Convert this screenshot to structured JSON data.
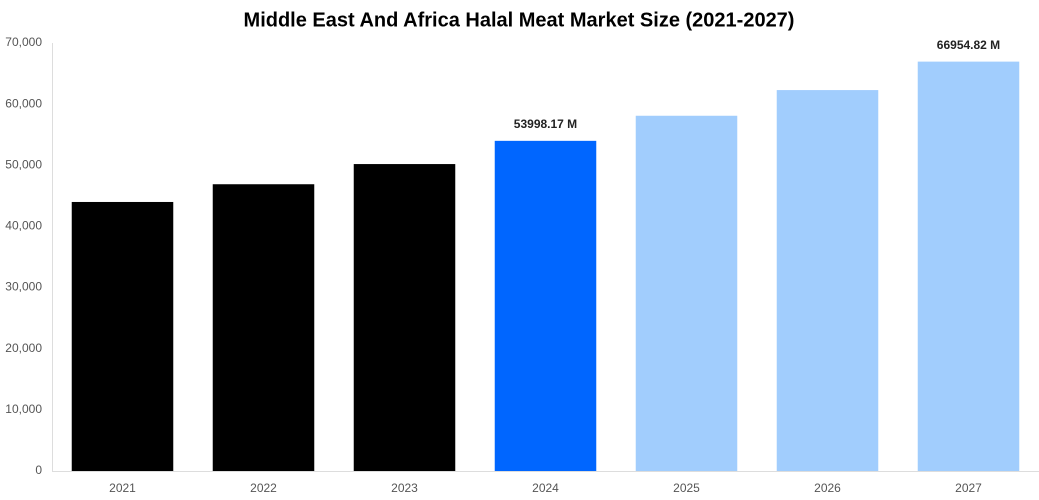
{
  "chart_data": {
    "type": "bar",
    "title": "Middle East And Africa Halal Meat Market Size (2021-2027)",
    "categories": [
      "2021",
      "2022",
      "2023",
      "2024",
      "2025",
      "2026",
      "2027"
    ],
    "values": [
      44000,
      46900,
      50200,
      53998.17,
      58100,
      62300,
      66954.82
    ],
    "value_labels": [
      null,
      null,
      null,
      "53998.17 M",
      null,
      null,
      "66954.82 M"
    ],
    "colors": [
      "#000000",
      "#000000",
      "#000000",
      "#0066ff",
      "#a1cdfd",
      "#a1cdfd",
      "#a1cdfd"
    ],
    "ylim": [
      0,
      70000
    ],
    "yticks": [
      0,
      {
        "value": 10000,
        "label": "10,000"
      },
      {
        "value": 20000,
        "label": "20,000"
      },
      {
        "value": 30000,
        "label": "30,000"
      },
      {
        "value": 40000,
        "label": "40,000"
      },
      {
        "value": 50000,
        "label": "50,000"
      },
      {
        "value": 60000,
        "label": "60,000"
      },
      {
        "value": 70000,
        "label": "70,000"
      }
    ],
    "grid": false
  }
}
